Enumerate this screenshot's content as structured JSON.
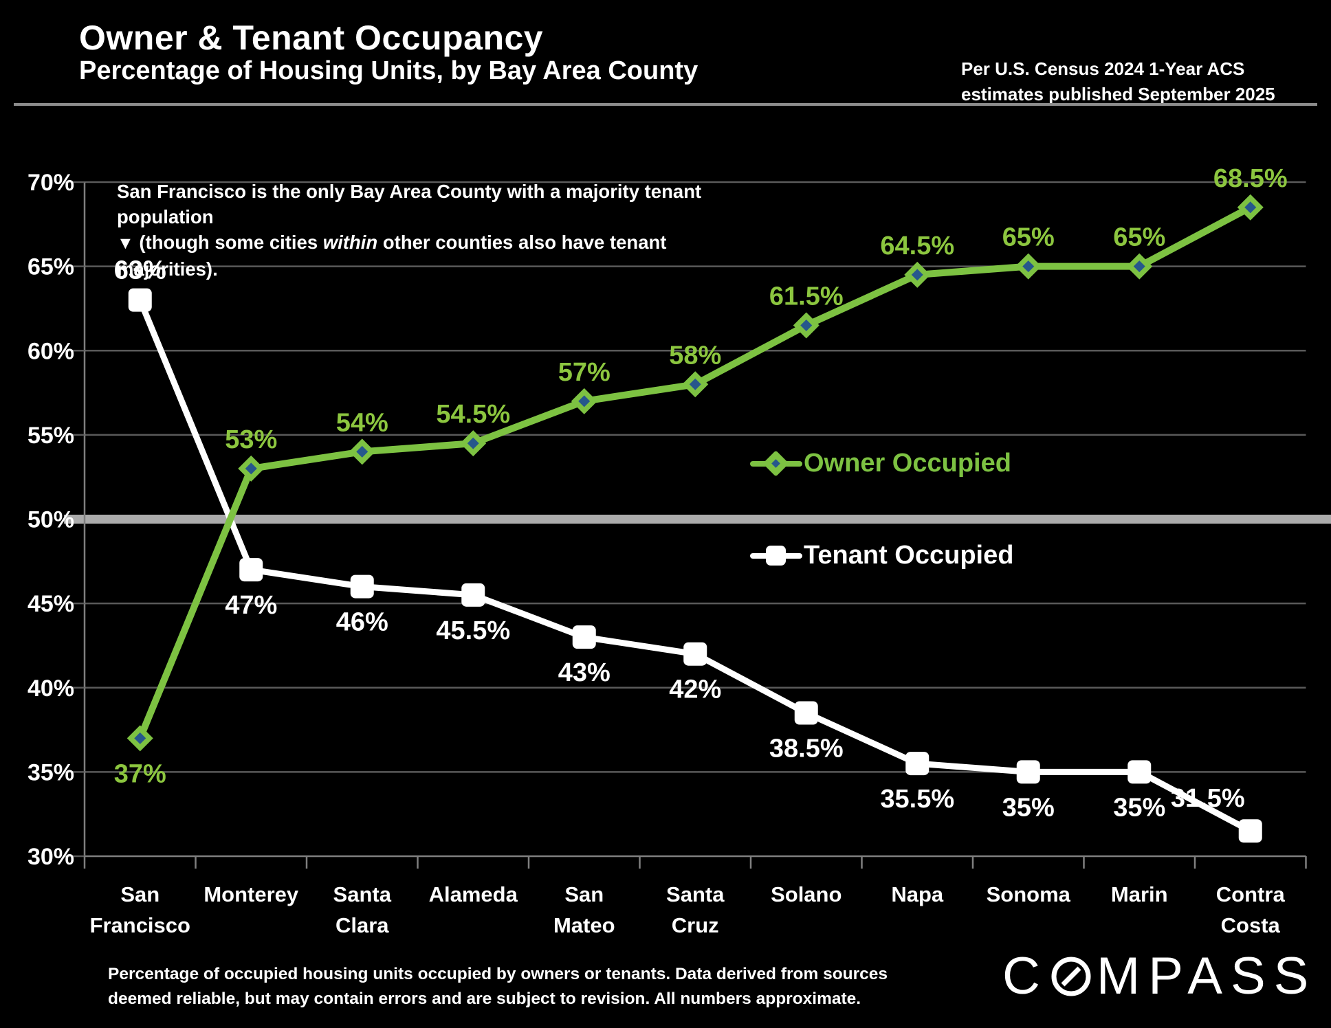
{
  "header": {
    "title": "Owner & Tenant Occupancy",
    "subtitle": "Percentage of Housing Units, by Bay Area County",
    "source_line1": "Per U.S. Census 2024 1-Year ACS",
    "source_line2": "estimates published September 2025"
  },
  "annotation": {
    "line1": "San Francisco is the only Bay Area County with a majority tenant population",
    "pointer_icon": "▼",
    "line2_prefix": " (though some cities ",
    "line2_italic": "within",
    "line2_suffix": " other counties also have tenant majorities)."
  },
  "legend": {
    "owner_label": "Owner Occupied",
    "tenant_label": "Tenant Occupied"
  },
  "footer": {
    "line1": "Percentage of occupied housing units occupied by owners or tenants. Data derived from sources",
    "line2": "deemed reliable, but may contain errors and are subject to revision.  All numbers approximate.",
    "logo_c": "C",
    "logo_rest": "MPASS"
  },
  "colors": {
    "background": "#000000",
    "owner_green": "#7DC242",
    "owner_label_green": "#8CC63F",
    "marker_blue": "#26578C",
    "tenant_white": "#FFFFFF",
    "gridline": "#5A5A5A",
    "axis": "#7F7F7F",
    "fifty_band": "#ABABAB",
    "tick_label": "#FFFFFF"
  },
  "chart_data": {
    "type": "line",
    "title": "Owner & Tenant Occupancy — Percentage of Housing Units, by Bay Area County",
    "categories": [
      "San Francisco",
      "Monterey",
      "Santa Clara",
      "Alameda",
      "San Mateo",
      "Santa Cruz",
      "Solano",
      "Napa",
      "Sonoma",
      "Marin",
      "Contra Costa"
    ],
    "category_label_lines": [
      [
        "San",
        "Francisco"
      ],
      [
        "Monterey"
      ],
      [
        "Santa",
        "Clara"
      ],
      [
        "Alameda"
      ],
      [
        "San",
        "Mateo"
      ],
      [
        "Santa",
        "Cruz"
      ],
      [
        "Solano"
      ],
      [
        "Napa"
      ],
      [
        "Sonoma"
      ],
      [
        "Marin"
      ],
      [
        "Contra",
        "Costa"
      ]
    ],
    "series": [
      {
        "name": "Owner Occupied",
        "marker": "diamond",
        "values": [
          37,
          53,
          54,
          54.5,
          57,
          58,
          61.5,
          64.5,
          65,
          65,
          68.5
        ],
        "labels": [
          "37%",
          "53%",
          "54%",
          "54.5%",
          "57%",
          "58%",
          "61.5%",
          "64.5%",
          "65%",
          "65%",
          "68.5%"
        ]
      },
      {
        "name": "Tenant Occupied",
        "marker": "square",
        "values": [
          63,
          47,
          46,
          45.5,
          43,
          42,
          38.5,
          35.5,
          35,
          35,
          31.5
        ],
        "labels": [
          "63%",
          "47%",
          "46%",
          "45.5%",
          "43%",
          "42%",
          "38.5%",
          "35.5%",
          "35%",
          "35%",
          "31.5%"
        ]
      }
    ],
    "ylim": [
      30,
      70
    ],
    "ytick_step": 5,
    "ytick_suffix": "%",
    "reference_line": 50,
    "grid": "horizontal",
    "legend_position": "inside-right"
  }
}
